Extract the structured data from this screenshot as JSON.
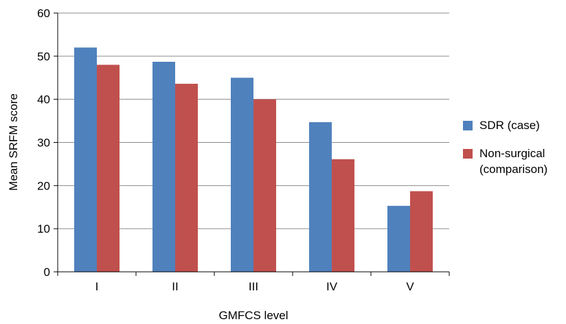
{
  "chart_data": {
    "type": "bar",
    "title": "",
    "xlabel": "GMFCS level",
    "ylabel": "Mean SRFM score",
    "categories": [
      "I",
      "II",
      "III",
      "IV",
      "V"
    ],
    "series": [
      {
        "name": "SDR (case)",
        "values": [
          52,
          48.7,
          45,
          34.7,
          15.3
        ],
        "color": "#4F81BD"
      },
      {
        "name": "Non-surgical (comparison)",
        "values": [
          48,
          43.6,
          40,
          26.1,
          18.7
        ],
        "color": "#C0504D"
      }
    ],
    "ylim": [
      0,
      60
    ],
    "yticks": [
      0,
      10,
      20,
      30,
      40,
      50,
      60
    ],
    "grid": true,
    "legend_position": "right"
  },
  "legend": {
    "items": [
      {
        "lines": [
          "SDR (case)"
        ],
        "color": "#4F81BD"
      },
      {
        "lines": [
          "Non-surgical",
          "(comparison)"
        ],
        "color": "#C0504D"
      }
    ]
  }
}
